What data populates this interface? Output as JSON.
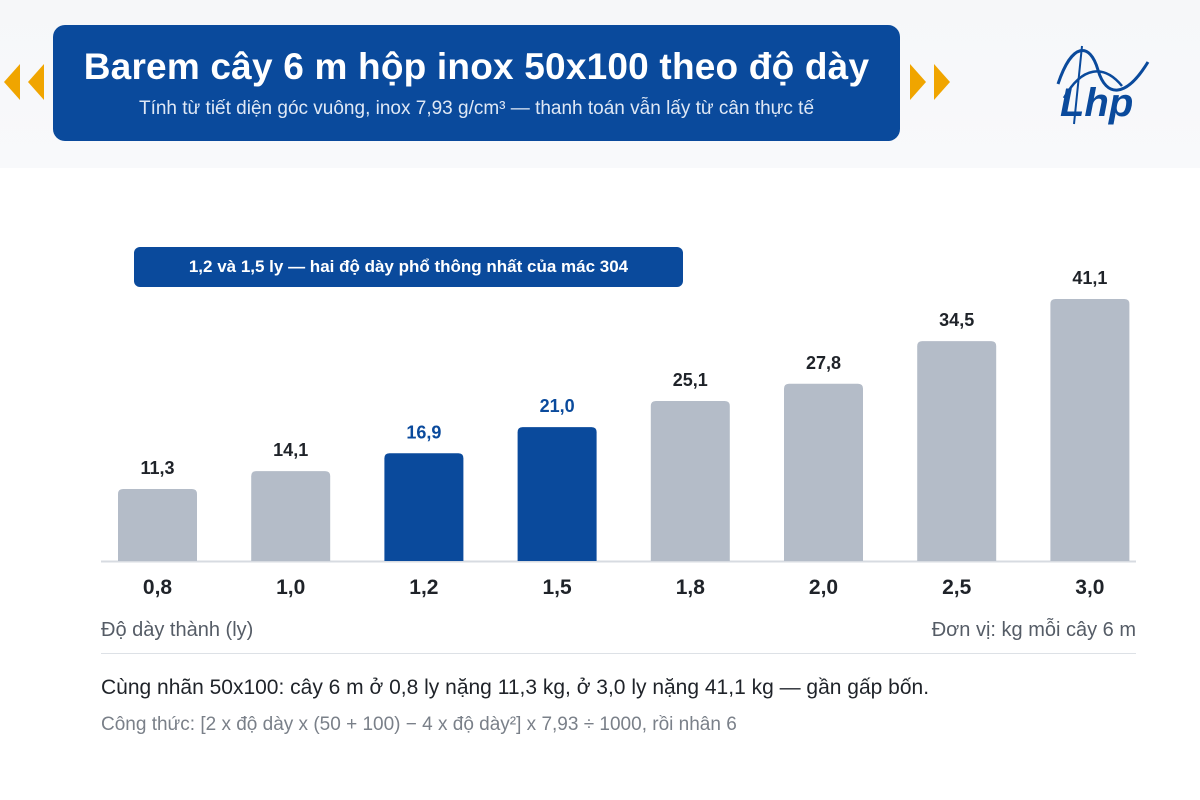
{
  "header": {
    "title": "Barem cây 6 m hộp inox 50x100 theo độ dày",
    "subtitle": "Tính từ tiết diện góc vuông, inox 7,93 g/cm³ — thanh toán vẫn lấy từ cân thực tế"
  },
  "logo": {
    "text": "Lhp",
    "icon": "lhp-logo"
  },
  "callout": {
    "text": "1,2 và 1,5 ly — hai độ dày phổ thông nhất của mác 304"
  },
  "footer": {
    "summary": "Cùng nhãn 50x100: cây 6 m ở 0,8 ly nặng 11,3 kg, ở 3,0 ly nặng 41,1 kg — gần gấp bốn.",
    "formula": "Công thức: [2 x độ dày x (50 + 100) − 4 x độ dày²] x 7,93 ÷ 1000, rồi nhân 6"
  },
  "colors": {
    "highlight": "#0a4a9c",
    "bar": "#b4bcc8",
    "label": "#1f2329",
    "highlight_label": "#0a4a9c",
    "arrow": "#f0a500"
  },
  "chart_data": {
    "type": "bar",
    "title": "Barem cây 6 m hộp inox 50x100 theo độ dày",
    "xlabel": "Độ dày thành (ly)",
    "ylabel": "",
    "unit_note": "Đơn vị: kg mỗi cây 6 m",
    "categories": [
      "0,8",
      "1,0",
      "1,2",
      "1,5",
      "1,8",
      "2,0",
      "2,5",
      "3,0"
    ],
    "values": [
      11.3,
      14.1,
      16.9,
      21.0,
      25.1,
      27.8,
      34.5,
      41.1
    ],
    "value_labels": [
      "11,3",
      "14,1",
      "16,9",
      "21,0",
      "25,1",
      "27,8",
      "34,5",
      "41,1"
    ],
    "highlighted": [
      "1,2",
      "1,5"
    ],
    "ylim": [
      0,
      41.1
    ],
    "grid": false,
    "legend": "none"
  }
}
